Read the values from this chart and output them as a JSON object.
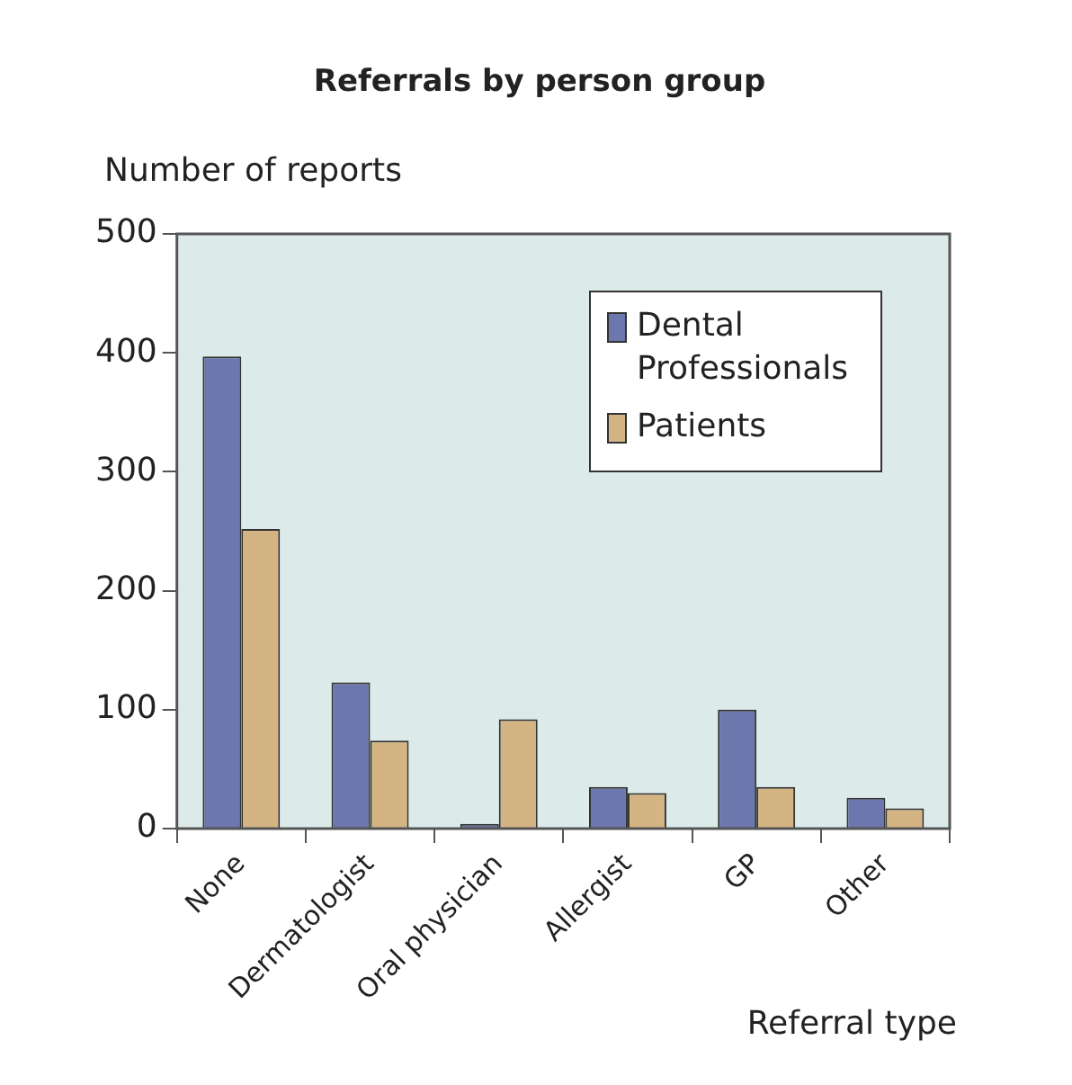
{
  "chart_data": {
    "type": "bar",
    "title": "Referrals by person group",
    "xlabel": "Referral type",
    "ylabel": "Number of reports",
    "categories": [
      "None",
      "Dermatologist",
      "Oral physician",
      "Allergist",
      "GP",
      "Other"
    ],
    "series": [
      {
        "name": "Dental Professionals",
        "color": "#6b77ad",
        "values": [
          397,
          123,
          4,
          35,
          100,
          26
        ]
      },
      {
        "name": "Patients",
        "color": "#d4b483",
        "values": [
          252,
          74,
          92,
          30,
          35,
          17
        ]
      }
    ],
    "ylim": [
      0,
      500
    ],
    "yticks": [
      0,
      100,
      200,
      300,
      400,
      500
    ],
    "legend": "top right"
  }
}
